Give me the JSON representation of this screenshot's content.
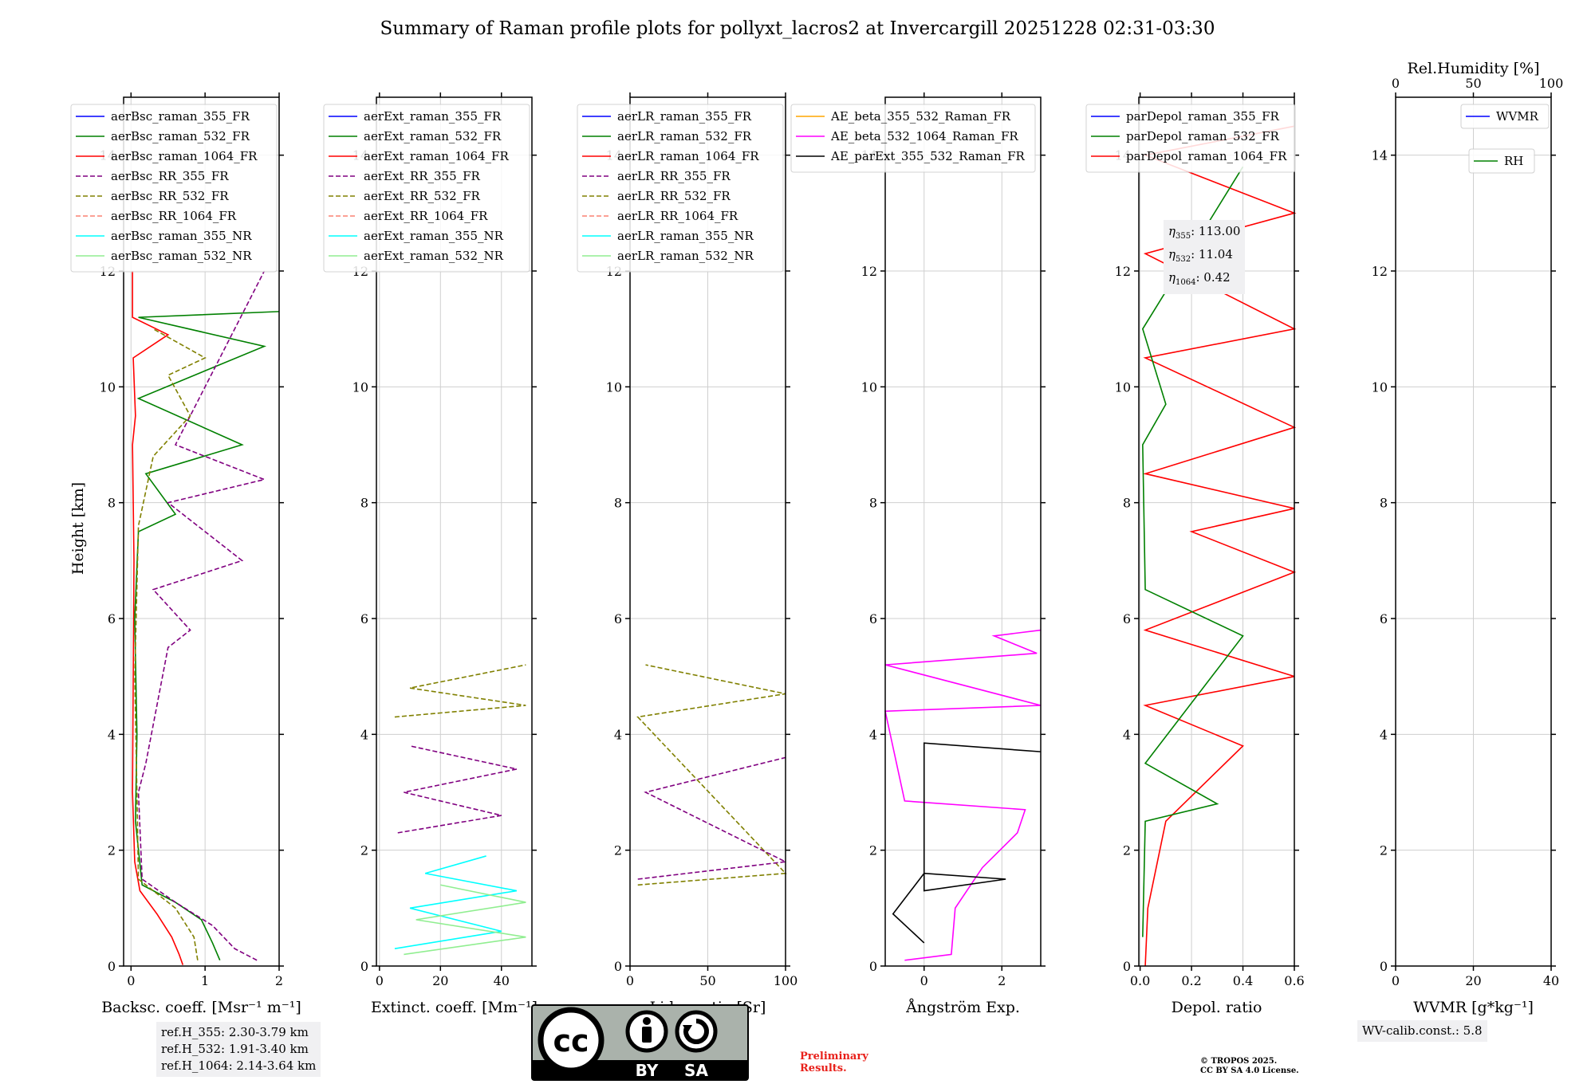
{
  "title": "Summary of Raman profile plots for pollyxt_lacros2 at Invercargill 20251228 02:31-03:30",
  "height_label": "Height [km]",
  "y_ticks": [
    0,
    2,
    4,
    6,
    8,
    10,
    12,
    14
  ],
  "panels": [
    {
      "id": "bsc",
      "xlabel": "Backsc. coeff. [Msr⁻¹ m⁻¹]",
      "xlim": [
        -0.1,
        2.0
      ],
      "xticks": [
        0,
        1,
        2
      ],
      "legend": [
        {
          "label": "aerBsc_raman_355_FR",
          "color": "#0000ff",
          "dash": false
        },
        {
          "label": "aerBsc_raman_532_FR",
          "color": "#008000",
          "dash": false
        },
        {
          "label": "aerBsc_raman_1064_FR",
          "color": "#ff0000",
          "dash": false
        },
        {
          "label": "aerBsc_RR_355_FR",
          "color": "#800080",
          "dash": true
        },
        {
          "label": "aerBsc_RR_532_FR",
          "color": "#808000",
          "dash": true
        },
        {
          "label": "aerBsc_RR_1064_FR",
          "color": "#fa8072",
          "dash": true
        },
        {
          "label": "aerBsc_raman_355_NR",
          "color": "#00ffff",
          "dash": false
        },
        {
          "label": "aerBsc_raman_532_NR",
          "color": "#90ee90",
          "dash": false
        }
      ]
    },
    {
      "id": "ext",
      "xlabel": "Extinct. coeff. [Mm⁻¹]",
      "xlim": [
        -1,
        50
      ],
      "xticks": [
        0,
        20,
        40
      ],
      "legend": [
        {
          "label": "aerExt_raman_355_FR",
          "color": "#0000ff",
          "dash": false
        },
        {
          "label": "aerExt_raman_532_FR",
          "color": "#008000",
          "dash": false
        },
        {
          "label": "aerExt_raman_1064_FR",
          "color": "#ff0000",
          "dash": false
        },
        {
          "label": "aerExt_RR_355_FR",
          "color": "#800080",
          "dash": true
        },
        {
          "label": "aerExt_RR_532_FR",
          "color": "#808000",
          "dash": true
        },
        {
          "label": "aerExt_RR_1064_FR",
          "color": "#fa8072",
          "dash": true
        },
        {
          "label": "aerExt_raman_355_NR",
          "color": "#00ffff",
          "dash": false
        },
        {
          "label": "aerExt_raman_532_NR",
          "color": "#90ee90",
          "dash": false
        }
      ]
    },
    {
      "id": "lr",
      "xlabel": "Lidar ratio [Sr]",
      "xlim": [
        0,
        100
      ],
      "xticks": [
        0,
        50,
        100
      ],
      "legend": [
        {
          "label": "aerLR_raman_355_FR",
          "color": "#0000ff",
          "dash": false
        },
        {
          "label": "aerLR_raman_532_FR",
          "color": "#008000",
          "dash": false
        },
        {
          "label": "aerLR_raman_1064_FR",
          "color": "#ff0000",
          "dash": false
        },
        {
          "label": "aerLR_RR_355_FR",
          "color": "#800080",
          "dash": true
        },
        {
          "label": "aerLR_RR_532_FR",
          "color": "#808000",
          "dash": true
        },
        {
          "label": "aerLR_RR_1064_FR",
          "color": "#fa8072",
          "dash": true
        },
        {
          "label": "aerLR_raman_355_NR",
          "color": "#00ffff",
          "dash": false
        },
        {
          "label": "aerLR_raman_532_NR",
          "color": "#90ee90",
          "dash": false
        }
      ]
    },
    {
      "id": "ae",
      "xlabel": "Ångström Exp.",
      "xlim": [
        -1,
        3
      ],
      "xticks": [
        0,
        2
      ],
      "legend": [
        {
          "label": "AE_beta_355_532_Raman_FR",
          "color": "#ffa500",
          "dash": false
        },
        {
          "label": "AE_beta_532_1064_Raman_FR",
          "color": "#ff00ff",
          "dash": false
        },
        {
          "label": "AE_parExt_355_532_Raman_FR",
          "color": "#000000",
          "dash": false
        }
      ]
    },
    {
      "id": "dep",
      "xlabel": "Depol. ratio",
      "xlim": [
        -0.005,
        0.6
      ],
      "xticks": [
        "0.0",
        "0.2",
        "0.4",
        "0.6"
      ],
      "legend": [
        {
          "label": "parDepol_raman_355_FR",
          "color": "#0000ff",
          "dash": false
        },
        {
          "label": "parDepol_raman_532_FR",
          "color": "#008000",
          "dash": false
        },
        {
          "label": "parDepol_raman_1064_FR",
          "color": "#ff0000",
          "dash": false
        }
      ]
    },
    {
      "id": "wv",
      "xlabel": "WVMR [g*kg⁻¹]",
      "xlim": [
        0,
        40
      ],
      "xticks": [
        0,
        20,
        40
      ],
      "top_label": "Rel.Humidity [%]",
      "top_ticks": [
        0,
        50,
        100
      ],
      "legend": [
        {
          "label": "WVMR",
          "color": "#0000ff",
          "dash": false
        },
        {
          "label": "RH",
          "color": "#008000",
          "dash": false
        }
      ]
    }
  ],
  "eta": {
    "e355": "113.00",
    "e532": "11.04",
    "e1064": "0.42"
  },
  "ref_heights": [
    "ref.H_355: 2.30-3.79 km",
    "ref.H_532: 1.91-3.40 km",
    "ref.H_1064: 2.14-3.64 km"
  ],
  "wv_calib": "WV-calib.const.: 5.8",
  "preliminary": [
    "Preliminary",
    "Results."
  ],
  "tropos": [
    "© TROPOS 2025.",
    "CC BY SA 4.0 License."
  ],
  "license_badge": {
    "by": "BY",
    "sa": "SA"
  },
  "chart_data": {
    "type": "line",
    "ylim": [
      0,
      15
    ],
    "series": [
      {
        "panel": "bsc",
        "name": "aerBsc_raman_1064_FR",
        "color": "#ff0000",
        "points": [
          [
            0.7,
            0.02
          ],
          [
            0.65,
            0.2
          ],
          [
            0.55,
            0.5
          ],
          [
            0.35,
            0.9
          ],
          [
            0.12,
            1.3
          ],
          [
            0.05,
            1.8
          ],
          [
            0.02,
            3
          ],
          [
            0.03,
            5
          ],
          [
            0.04,
            7
          ],
          [
            0.02,
            9
          ],
          [
            0.06,
            9.5
          ],
          [
            0.03,
            10.5
          ],
          [
            0.5,
            10.9
          ],
          [
            0.02,
            11.2
          ],
          [
            0.02,
            12
          ]
        ]
      },
      {
        "panel": "bsc",
        "name": "aerBsc_raman_532_FR",
        "color": "#008000",
        "points": [
          [
            1.2,
            0.1
          ],
          [
            1.1,
            0.4
          ],
          [
            0.95,
            0.8
          ],
          [
            0.6,
            1.1
          ],
          [
            0.15,
            1.4
          ],
          [
            0.06,
            2.5
          ],
          [
            0.08,
            4
          ],
          [
            0.05,
            6
          ],
          [
            0.1,
            7.5
          ],
          [
            0.6,
            7.8
          ],
          [
            0.2,
            8.5
          ],
          [
            1.5,
            9
          ],
          [
            0.1,
            9.8
          ],
          [
            1.8,
            10.7
          ],
          [
            0.1,
            11.2
          ],
          [
            2.0,
            11.3
          ]
        ]
      },
      {
        "panel": "bsc",
        "name": "aerBsc_RR_355_FR",
        "color": "#800080",
        "points": [
          [
            1.7,
            0.1
          ],
          [
            1.4,
            0.3
          ],
          [
            1.1,
            0.7
          ],
          [
            0.6,
            1.1
          ],
          [
            0.15,
            1.5
          ],
          [
            0.1,
            3
          ],
          [
            0.2,
            3.5
          ],
          [
            0.5,
            5.5
          ],
          [
            0.8,
            5.8
          ],
          [
            0.3,
            6.5
          ],
          [
            1.5,
            7
          ],
          [
            0.5,
            8
          ],
          [
            1.8,
            8.4
          ],
          [
            0.6,
            9
          ],
          [
            1.6,
            11.5
          ],
          [
            1.8,
            12
          ]
        ]
      },
      {
        "panel": "bsc",
        "name": "aerBsc_RR_532_FR",
        "color": "#808000",
        "points": [
          [
            0.9,
            0.1
          ],
          [
            0.85,
            0.5
          ],
          [
            0.6,
            1.0
          ],
          [
            0.1,
            1.5
          ],
          [
            0.08,
            3
          ],
          [
            0.05,
            5
          ],
          [
            0.1,
            7.6
          ],
          [
            0.3,
            8.8
          ],
          [
            0.8,
            9.5
          ],
          [
            0.5,
            10.2
          ],
          [
            1.0,
            10.5
          ],
          [
            0.3,
            11
          ]
        ]
      },
      {
        "panel": "ext",
        "name": "aerExt_raman_355_NR",
        "color": "#00ffff",
        "points": [
          [
            5,
            0.3
          ],
          [
            40,
            0.6
          ],
          [
            10,
            1.0
          ],
          [
            45,
            1.3
          ],
          [
            15,
            1.6
          ],
          [
            35,
            1.9
          ]
        ]
      },
      {
        "panel": "ext",
        "name": "aerExt_raman_532_NR",
        "color": "#90ee90",
        "points": [
          [
            8,
            0.2
          ],
          [
            48,
            0.5
          ],
          [
            12,
            0.8
          ],
          [
            48,
            1.1
          ],
          [
            20,
            1.4
          ]
        ]
      },
      {
        "panel": "ext",
        "name": "aerExt_RR_532_FR",
        "color": "#808000",
        "points": [
          [
            5,
            4.3
          ],
          [
            48,
            4.5
          ],
          [
            10,
            4.8
          ],
          [
            48,
            5.2
          ]
        ]
      },
      {
        "panel": "ext",
        "name": "aerExt_RR_355_FR",
        "color": "#800080",
        "points": [
          [
            6,
            2.3
          ],
          [
            40,
            2.6
          ],
          [
            8,
            3.0
          ],
          [
            45,
            3.4
          ],
          [
            10,
            3.8
          ]
        ]
      },
      {
        "panel": "lr",
        "name": "aerLR_RR_532_FR",
        "color": "#808000",
        "points": [
          [
            5,
            1.4
          ],
          [
            100,
            1.6
          ],
          [
            5,
            4.3
          ],
          [
            100,
            4.7
          ],
          [
            10,
            5.2
          ]
        ]
      },
      {
        "panel": "lr",
        "name": "aerLR_RR_355_FR",
        "color": "#800080",
        "points": [
          [
            5,
            1.5
          ],
          [
            100,
            1.8
          ],
          [
            10,
            3.0
          ],
          [
            100,
            3.6
          ]
        ]
      },
      {
        "panel": "ae",
        "name": "AE_beta_532_1064_Raman_FR",
        "color": "#ff00ff",
        "points": [
          [
            -0.5,
            0.1
          ],
          [
            0.7,
            0.2
          ],
          [
            0.8,
            1.0
          ],
          [
            1.5,
            1.7
          ],
          [
            2.4,
            2.3
          ],
          [
            2.6,
            2.7
          ],
          [
            -0.5,
            2.85
          ],
          [
            -1,
            4.4
          ],
          [
            3,
            4.5
          ],
          [
            -1,
            5.2
          ],
          [
            2.9,
            5.4
          ],
          [
            1.8,
            5.7
          ],
          [
            3,
            5.8
          ]
        ]
      },
      {
        "panel": "ae",
        "name": "AE_parExt_355_532_Raman_FR",
        "color": "#000000",
        "points": [
          [
            0,
            0.4
          ],
          [
            -0.8,
            0.9
          ],
          [
            0.0,
            1.6
          ],
          [
            2.1,
            1.5
          ],
          [
            0,
            1.3
          ],
          [
            0,
            3.85
          ],
          [
            3,
            3.7
          ]
        ]
      },
      {
        "panel": "dep",
        "name": "parDepol_raman_1064_FR",
        "color": "#ff0000",
        "points": [
          [
            0.02,
            0
          ],
          [
            0.03,
            1
          ],
          [
            0.1,
            2.5
          ],
          [
            0.4,
            3.8
          ],
          [
            0.02,
            4.5
          ],
          [
            0.6,
            5.0
          ],
          [
            0.02,
            5.8
          ],
          [
            0.6,
            6.8
          ],
          [
            0.2,
            7.5
          ],
          [
            0.6,
            7.9
          ],
          [
            0.02,
            8.5
          ],
          [
            0.6,
            9.3
          ],
          [
            0.02,
            10.5
          ],
          [
            0.6,
            11
          ],
          [
            0.02,
            12.3
          ],
          [
            0.6,
            13
          ],
          [
            0.02,
            14
          ],
          [
            0.6,
            14.5
          ]
        ]
      },
      {
        "panel": "dep",
        "name": "parDepol_raman_532_FR",
        "color": "#008000",
        "points": [
          [
            0.01,
            0.5
          ],
          [
            0.02,
            2.5
          ],
          [
            0.3,
            2.8
          ],
          [
            0.02,
            3.5
          ],
          [
            0.4,
            5.7
          ],
          [
            0.02,
            6.5
          ],
          [
            0.01,
            9
          ],
          [
            0.1,
            9.7
          ],
          [
            0.01,
            11
          ],
          [
            0.4,
            13.8
          ]
        ]
      }
    ]
  }
}
